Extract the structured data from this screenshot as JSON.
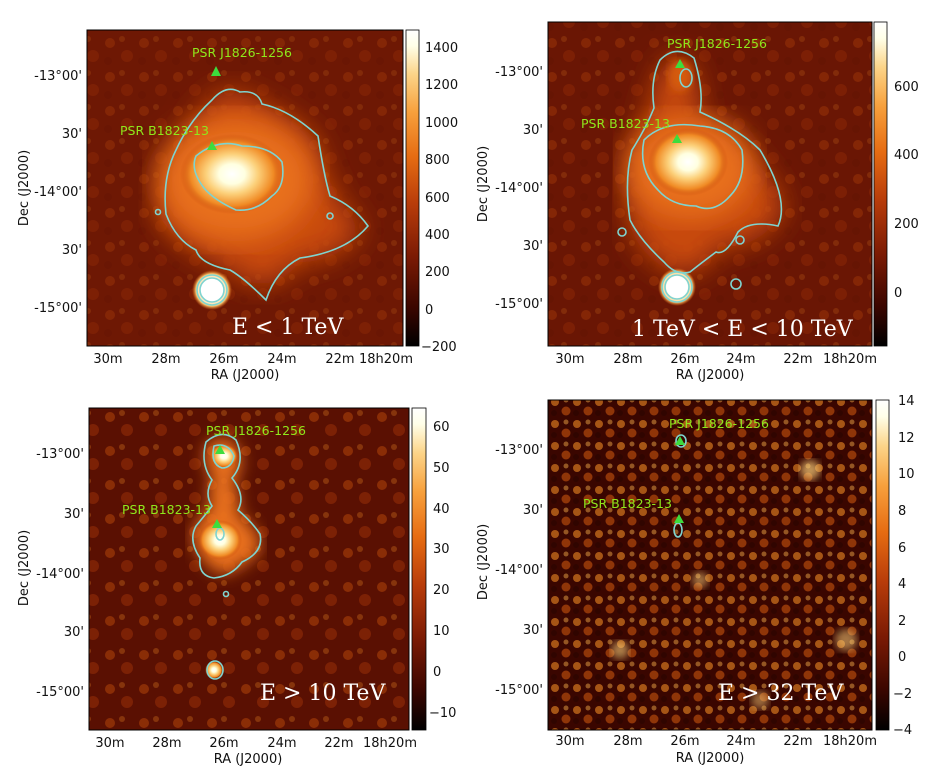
{
  "figure": {
    "colors": {
      "contour": "#7fd4d0",
      "pulsar_marker": "#3ddc3d",
      "pulsar_label": "#8fe81c",
      "colormap": [
        "#000000",
        "#3a0600",
        "#7a1a04",
        "#b83c0a",
        "#e66c12",
        "#f7a03c",
        "#fcd488",
        "#ffffe8",
        "#ffffff"
      ]
    },
    "ra_ticks": [
      "30m",
      "28m",
      "26m",
      "24m",
      "22m",
      "18h20m"
    ],
    "dec_ticks": [
      "-13°00'",
      "30'",
      "-14°00'",
      "30'",
      "-15°00'"
    ],
    "xlabel": "RA (J2000)",
    "ylabel": "Dec (J2000)",
    "panels": [
      {
        "energy_label": "E < 1 TeV",
        "psr_top": "PSR J1826-1256",
        "psr_bottom": "PSR B1823-13",
        "colorbar_ticks": [
          "1400",
          "1200",
          "1000",
          "800",
          "600",
          "400",
          "200",
          "0",
          "−200"
        ]
      },
      {
        "energy_label": "1 TeV < E < 10 TeV",
        "psr_top": "PSR J1826-1256",
        "psr_bottom": "PSR B1823-13",
        "colorbar_ticks": [
          "600",
          "400",
          "200",
          "0"
        ]
      },
      {
        "energy_label": "E > 10 TeV",
        "psr_top": "PSR J1826-1256",
        "psr_bottom": "PSR B1823-13",
        "colorbar_ticks": [
          "60",
          "50",
          "40",
          "30",
          "20",
          "10",
          "0",
          "−10"
        ]
      },
      {
        "energy_label": "E > 32 TeV",
        "psr_top": "PSR J1826-1256",
        "psr_bottom": "PSR B1823-13",
        "colorbar_ticks": [
          "14",
          "12",
          "10",
          "8",
          "6",
          "4",
          "2",
          "0",
          "−2",
          "−4"
        ]
      }
    ]
  }
}
